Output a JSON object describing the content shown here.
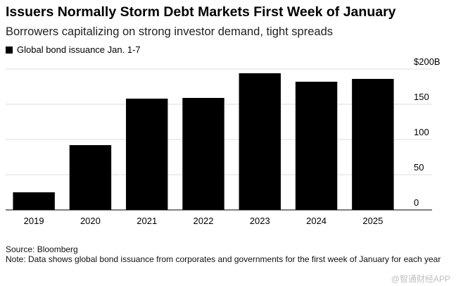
{
  "title": "Issuers Normally Storm Debt Markets First Week of January",
  "subtitle": "Borrowers capitalizing on strong investor demand, tight spreads",
  "legend": {
    "label": "Global bond issuance Jan. 1-7",
    "color": "#000000"
  },
  "footer": {
    "source": "Source: Bloomberg",
    "note": "Note: Data shows global bond issuance from corporates and governments for the first week of January for each year"
  },
  "watermark": "@智通财经APP",
  "chart_data": {
    "type": "bar",
    "categories": [
      "2019",
      "2020",
      "2021",
      "2022",
      "2023",
      "2024",
      "2025"
    ],
    "series": [
      {
        "name": "Global bond issuance Jan. 1-7",
        "values": [
          25,
          92,
          158,
          159,
          194,
          182,
          186
        ],
        "color": "#000000"
      }
    ],
    "ylim": [
      0,
      210
    ],
    "yticks": [
      0,
      50,
      100,
      150,
      200
    ],
    "ytick_labels": [
      "0",
      "50",
      "100",
      "150",
      "$200B"
    ],
    "grid": true,
    "legend_position": "top-left",
    "title": "Issuers Normally Storm Debt Markets First Week of January"
  }
}
